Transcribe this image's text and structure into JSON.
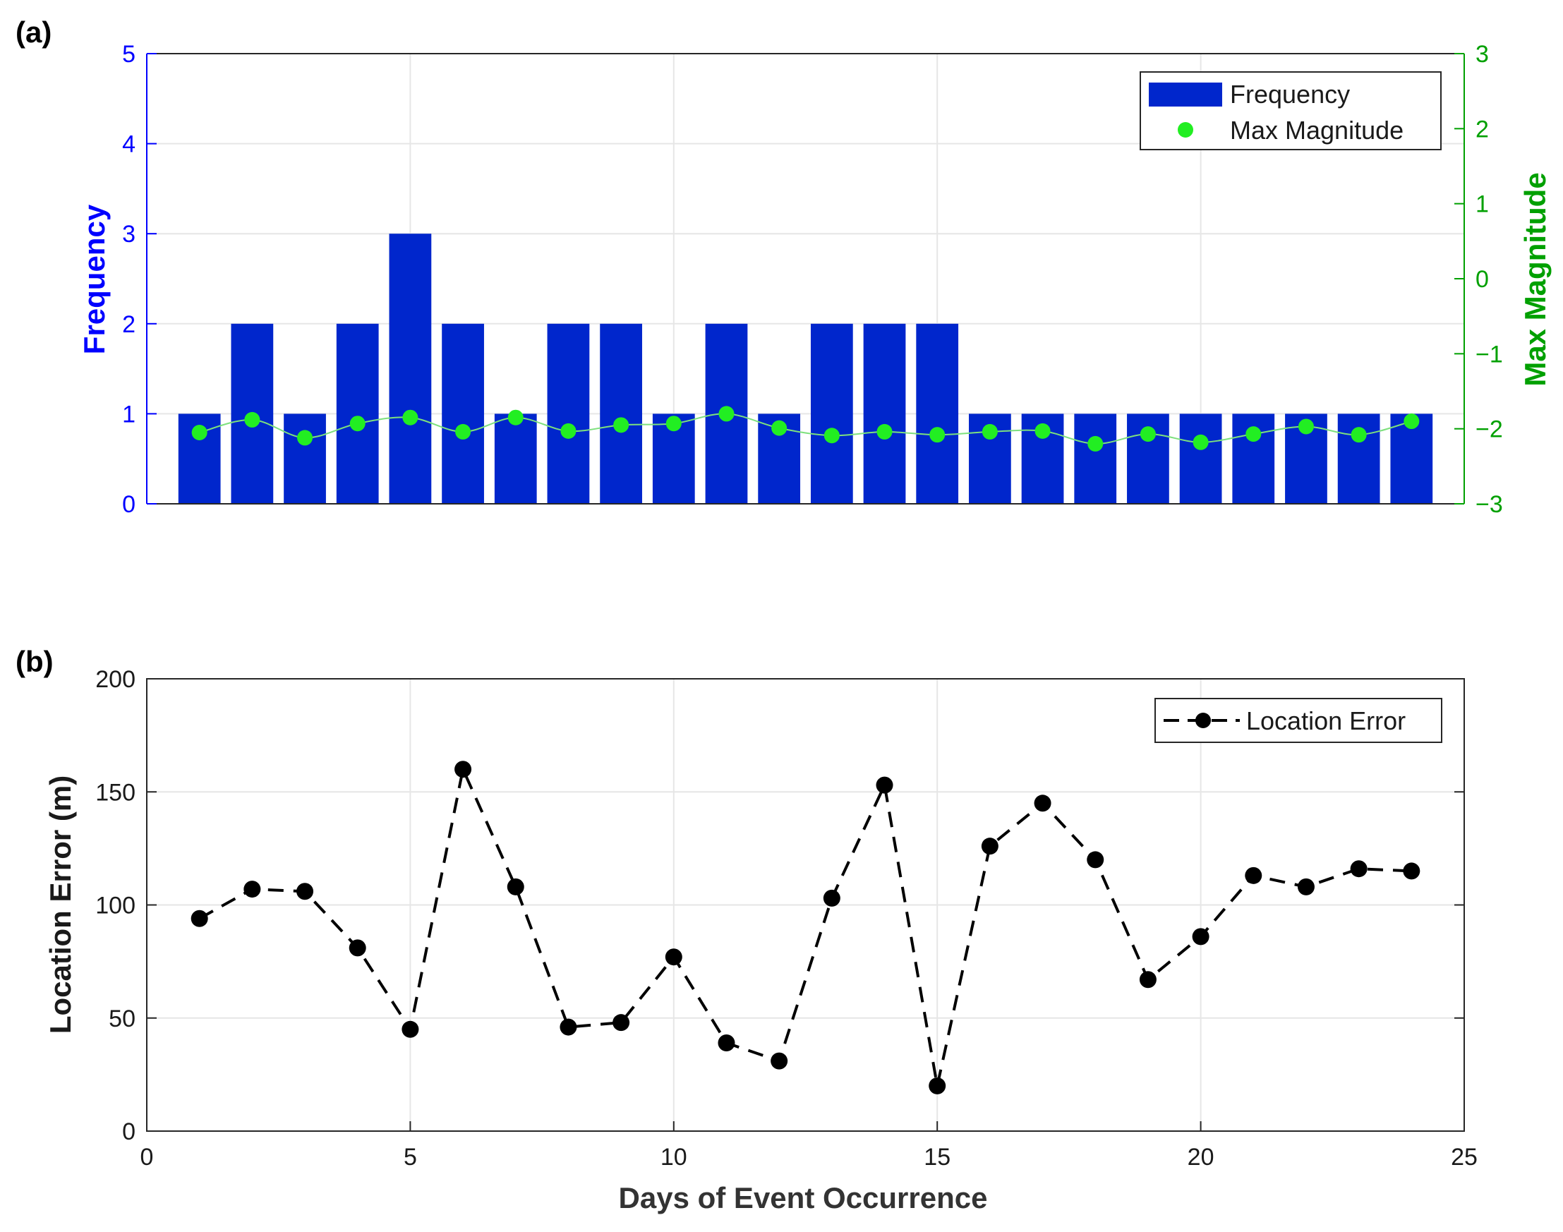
{
  "panels": {
    "a_tag": "(a)",
    "b_tag": "(b)"
  },
  "colors": {
    "bar": "#0026cc",
    "magnitude": "#22ee22",
    "magnitude_line": "#7de07d",
    "left_axis": "#0000ff",
    "right_axis": "#00a000",
    "error": "#000000",
    "grid": "#e6e6e6"
  },
  "chart_data": [
    {
      "type": "bar",
      "panel": "(a)",
      "x": [
        1,
        2,
        3,
        4,
        5,
        6,
        7,
        8,
        9,
        10,
        11,
        12,
        13,
        14,
        15,
        16,
        17,
        18,
        19,
        20,
        21,
        22,
        23,
        24
      ],
      "series": [
        {
          "name": "Frequency",
          "axis": "left",
          "values": [
            1,
            2,
            1,
            2,
            3,
            2,
            1,
            2,
            2,
            1,
            2,
            1,
            2,
            2,
            2,
            1,
            1,
            1,
            1,
            1,
            1,
            1,
            1,
            1
          ]
        },
        {
          "name": "Max Magnitude",
          "axis": "right",
          "style": "markers+smooth line",
          "values": [
            -2.05,
            -1.88,
            -2.12,
            -1.93,
            -1.85,
            -2.04,
            -1.85,
            -2.03,
            -1.95,
            -1.93,
            -1.8,
            -1.99,
            -2.09,
            -2.04,
            -2.08,
            -2.04,
            -2.03,
            -2.2,
            -2.07,
            -2.18,
            -2.07,
            -1.97,
            -2.08,
            -1.9
          ]
        }
      ],
      "ylabel": "Frequency",
      "ylabel_right": "Max Magnitude",
      "xlim": [
        0,
        25
      ],
      "ylim": [
        0,
        5
      ],
      "ylim_right": [
        -3,
        3
      ],
      "yticks": [
        "0",
        "1",
        "2",
        "3",
        "4",
        "5"
      ],
      "yticks_right": [
        "−3",
        "−2",
        "−1",
        "0",
        "1",
        "2",
        "3"
      ],
      "grid": true,
      "legend": {
        "placement": "top-right",
        "entries": [
          "Frequency",
          "Max Magnitude"
        ]
      }
    },
    {
      "type": "line",
      "panel": "(b)",
      "x": [
        1,
        2,
        3,
        4,
        5,
        6,
        7,
        8,
        9,
        10,
        11,
        12,
        13,
        14,
        15,
        16,
        17,
        18,
        19,
        20,
        21,
        22,
        23,
        24
      ],
      "series": [
        {
          "name": "Location Error",
          "style": "dashed with circle markers",
          "values": [
            94,
            107,
            106,
            81,
            45,
            160,
            108,
            46,
            48,
            77,
            39,
            31,
            103,
            153,
            20,
            126,
            145,
            120,
            67,
            86,
            113,
            108,
            116,
            115
          ]
        }
      ],
      "xlabel": "Days of Event Occurrence",
      "ylabel": "Location Error (m)",
      "xlim": [
        0,
        25
      ],
      "ylim": [
        0,
        200
      ],
      "xticks": [
        "0",
        "5",
        "10",
        "15",
        "20",
        "25"
      ],
      "yticks": [
        "0",
        "50",
        "100",
        "150",
        "200"
      ],
      "grid": true,
      "legend": {
        "placement": "top-right",
        "entries": [
          "Location Error"
        ]
      }
    }
  ]
}
